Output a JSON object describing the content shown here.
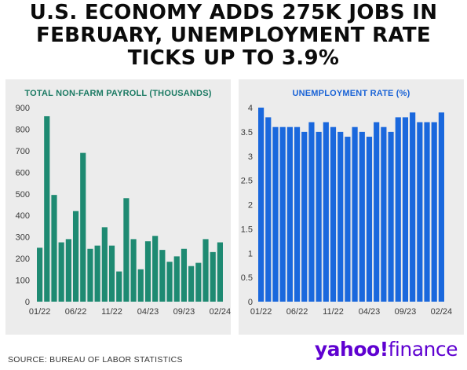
{
  "headline": {
    "line1": "U.S. ECONOMY ADDS 275K JOBS IN",
    "line2": "FEBRUARY, UNEMPLOYMENT RATE",
    "line3": "TICKS UP TO 3.9%"
  },
  "source": "SOURCE: BUREAU OF LABOR STATISTICS",
  "brand": {
    "part1": "yahoo",
    "mark": "!",
    "part2": "finance"
  },
  "colors": {
    "payroll": "#1e8a72",
    "unemployment": "#1a68dd"
  },
  "chart_data": [
    {
      "type": "bar",
      "title": "TOTAL NON-FARM PAYROLL (THOUSANDS)",
      "xlabel": "",
      "ylabel": "",
      "ylim": [
        0,
        900
      ],
      "yticks": [
        "0",
        "100",
        "200",
        "300",
        "400",
        "500",
        "600",
        "700",
        "800",
        "900"
      ],
      "xtick_labels": [
        "01/22",
        "06/22",
        "11/22",
        "04/23",
        "09/23",
        "02/24"
      ],
      "categories": [
        "01/22",
        "02/22",
        "03/22",
        "04/22",
        "05/22",
        "06/22",
        "07/22",
        "08/22",
        "09/22",
        "10/22",
        "11/22",
        "12/22",
        "01/23",
        "02/23",
        "03/23",
        "04/23",
        "05/23",
        "06/23",
        "07/23",
        "08/23",
        "09/23",
        "10/23",
        "11/23",
        "12/23",
        "01/24",
        "02/24"
      ],
      "values": [
        250,
        860,
        495,
        275,
        290,
        420,
        690,
        245,
        260,
        345,
        260,
        140,
        480,
        290,
        150,
        280,
        305,
        240,
        185,
        210,
        245,
        165,
        180,
        290,
        230,
        275
      ],
      "grid": false
    },
    {
      "type": "bar",
      "title": "UNEMPLOYMENT RATE (%)",
      "xlabel": "",
      "ylabel": "",
      "ylim": [
        0,
        4
      ],
      "yticks": [
        "0",
        "0.5",
        "1",
        "1.5",
        "2",
        "2.5",
        "3",
        "3.5",
        "4"
      ],
      "xtick_labels": [
        "01/22",
        "06/22",
        "11/22",
        "04/23",
        "09/23",
        "02/24"
      ],
      "categories": [
        "01/22",
        "02/22",
        "03/22",
        "04/22",
        "05/22",
        "06/22",
        "07/22",
        "08/22",
        "09/22",
        "10/22",
        "11/22",
        "12/22",
        "01/23",
        "02/23",
        "03/23",
        "04/23",
        "05/23",
        "06/23",
        "07/23",
        "08/23",
        "09/23",
        "10/23",
        "11/23",
        "12/23",
        "01/24",
        "02/24"
      ],
      "values": [
        4.0,
        3.8,
        3.6,
        3.6,
        3.6,
        3.6,
        3.5,
        3.7,
        3.5,
        3.7,
        3.6,
        3.5,
        3.4,
        3.6,
        3.5,
        3.4,
        3.7,
        3.6,
        3.5,
        3.8,
        3.8,
        3.9,
        3.7,
        3.7,
        3.7,
        3.9
      ],
      "grid": false
    }
  ]
}
